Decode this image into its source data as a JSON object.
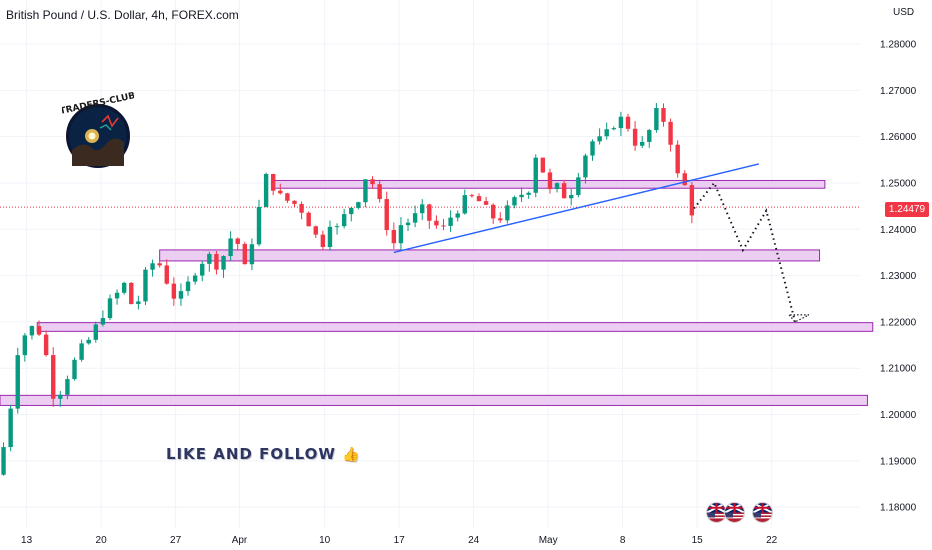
{
  "header": {
    "title": "British Pound / U.S. Dollar, 4h, FOREX.com",
    "currency": "USD"
  },
  "current_price": {
    "label": "1.24479",
    "value": 1.24479,
    "color": "#f23645"
  },
  "logo": {
    "text": "TRADERS-CLUB",
    "icon": "traders-club-logo"
  },
  "banner": {
    "text": "LIKE AND FOLLOW",
    "icon": "thumbs-up-icon"
  },
  "flags": {
    "count": 3,
    "icons": [
      "uk-us-flag-icon",
      "uk-us-flag-icon",
      "uk-us-flag-icon"
    ]
  },
  "chart_data": {
    "type": "candlestick",
    "instrument": "GBPUSD",
    "timeframe": "4h",
    "ylim": [
      1.1755,
      1.2895
    ],
    "y_ticks": [
      1.28,
      1.27,
      1.26,
      1.25,
      1.24,
      1.23,
      1.22,
      1.21,
      1.2,
      1.19,
      1.18
    ],
    "y_tick_labels": [
      "1.28000",
      "1.27000",
      "1.26000",
      "1.25000",
      "1.24000",
      "1.23000",
      "1.22000",
      "1.21000",
      "1.20000",
      "1.19000",
      "1.18000"
    ],
    "x_tick_labels": [
      "13",
      "20",
      "27",
      "Apr",
      "10",
      "17",
      "24",
      "May",
      "8",
      "15",
      "22"
    ],
    "x_tick_days": [
      13,
      20,
      27,
      33,
      41,
      48,
      55,
      62,
      69,
      76,
      83
    ],
    "x_start_day": 10.5,
    "x_end_day": 91.3,
    "up_color": "#089981",
    "down_color": "#f23645",
    "price_path": [
      [
        10.5,
        1.187
      ],
      [
        11.5,
        1.196
      ],
      [
        12.5,
        1.214
      ],
      [
        13.5,
        1.219
      ],
      [
        14.5,
        1.218
      ],
      [
        15.5,
        1.21
      ],
      [
        16.0,
        1.202
      ],
      [
        16.6,
        1.206
      ],
      [
        17.5,
        1.21
      ],
      [
        18.5,
        1.214
      ],
      [
        19.5,
        1.217
      ],
      [
        20.5,
        1.222
      ],
      [
        21.5,
        1.225
      ],
      [
        22.5,
        1.228
      ],
      [
        23.5,
        1.222
      ],
      [
        24.5,
        1.23
      ],
      [
        25.5,
        1.234
      ],
      [
        26.5,
        1.229
      ],
      [
        27.5,
        1.224
      ],
      [
        28.5,
        1.228
      ],
      [
        29.5,
        1.233
      ],
      [
        30.5,
        1.234
      ],
      [
        31.5,
        1.232
      ],
      [
        32.2,
        1.237
      ],
      [
        33.0,
        1.24
      ],
      [
        33.6,
        1.229
      ],
      [
        34.3,
        1.236
      ],
      [
        35.0,
        1.242
      ],
      [
        35.5,
        1.249
      ],
      [
        36.0,
        1.252
      ],
      [
        37.0,
        1.247
      ],
      [
        38.0,
        1.246
      ],
      [
        39.0,
        1.245
      ],
      [
        40.0,
        1.241
      ],
      [
        41.0,
        1.236
      ],
      [
        41.8,
        1.242
      ],
      [
        42.5,
        1.24
      ],
      [
        43.5,
        1.244
      ],
      [
        44.5,
        1.247
      ],
      [
        45.0,
        1.251
      ],
      [
        45.5,
        1.252
      ],
      [
        46.3,
        1.247
      ],
      [
        46.8,
        1.243
      ],
      [
        47.5,
        1.239
      ],
      [
        48.0,
        1.236
      ],
      [
        48.5,
        1.241
      ],
      [
        49.5,
        1.242
      ],
      [
        50.5,
        1.244
      ],
      [
        51.5,
        1.241
      ],
      [
        52.5,
        1.24
      ],
      [
        53.5,
        1.244
      ],
      [
        54.5,
        1.246
      ],
      [
        55.5,
        1.247
      ],
      [
        56.5,
        1.244
      ],
      [
        57.5,
        1.242
      ],
      [
        58.5,
        1.244
      ],
      [
        59.5,
        1.247
      ],
      [
        60.5,
        1.249
      ],
      [
        61.0,
        1.257
      ],
      [
        61.8,
        1.253
      ],
      [
        62.5,
        1.248
      ],
      [
        63.3,
        1.249
      ],
      [
        64.0,
        1.247
      ],
      [
        64.7,
        1.249
      ],
      [
        65.5,
        1.255
      ],
      [
        66.5,
        1.259
      ],
      [
        67.5,
        1.259
      ],
      [
        68.5,
        1.263
      ],
      [
        69.5,
        1.264
      ],
      [
        70.5,
        1.259
      ],
      [
        71.2,
        1.258
      ],
      [
        72.0,
        1.262
      ],
      [
        72.7,
        1.266
      ],
      [
        73.5,
        1.262
      ],
      [
        74.0,
        1.258
      ],
      [
        74.3,
        1.251
      ],
      [
        74.8,
        1.252
      ],
      [
        75.2,
        1.249
      ],
      [
        75.6,
        1.244
      ]
    ],
    "zones": [
      {
        "from_day": 36.0,
        "to_day": 88.0,
        "low": 1.2494,
        "high": 1.25
      },
      {
        "from_day": 25.5,
        "to_day": 87.5,
        "low": 1.2337,
        "high": 1.235
      },
      {
        "from_day": 14.0,
        "to_day": 92.5,
        "low": 1.2185,
        "high": 1.2193
      },
      {
        "from_day": 10.5,
        "to_day": 92.0,
        "low": 1.2025,
        "high": 1.2036
      }
    ],
    "trendline": {
      "x1": 47.5,
      "y1": 1.235,
      "x2": 81.8,
      "y2": 1.2541,
      "color": "#2962ff"
    },
    "projection": [
      [
        75.7,
        1.2445
      ],
      [
        77.6,
        1.25
      ],
      [
        80.3,
        1.2355
      ],
      [
        82.5,
        1.244
      ],
      [
        85.2,
        1.22
      ],
      [
        86.5,
        1.2215
      ]
    ],
    "current_price_line": 1.24479
  }
}
